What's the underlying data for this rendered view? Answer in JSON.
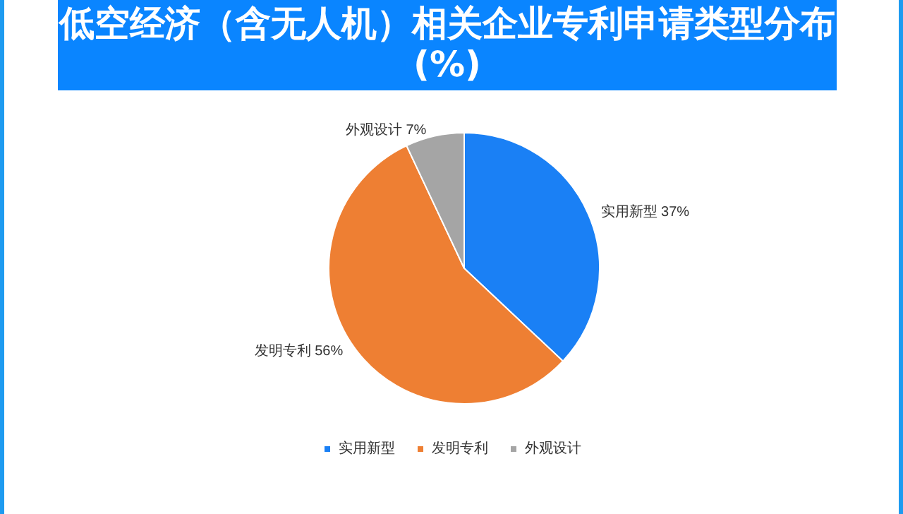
{
  "chart_data": {
    "type": "pie",
    "title": "低空经济（含无人机）相关企业专利申请类型分布 (%)",
    "categories": [
      "实用新型",
      "发明专利",
      "外观设计"
    ],
    "values": [
      37,
      56,
      7
    ],
    "value_labels": [
      "37%",
      "56%",
      "7%"
    ],
    "colors": [
      "#1a80f5",
      "#ee7f33",
      "#a5a5a5"
    ],
    "legend": "bottom"
  }
}
